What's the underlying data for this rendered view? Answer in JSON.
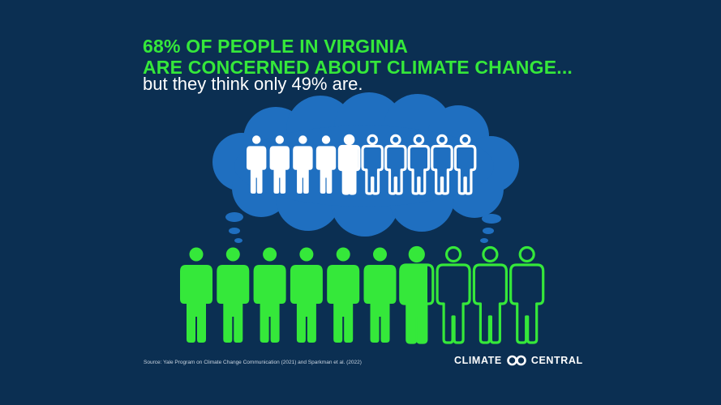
{
  "headline": {
    "line1": "68% OF PEOPLE IN VIRGINIA",
    "line2": "ARE CONCERNED ABOUT CLIMATE CHANGE...",
    "subline": "but they think only 49% are."
  },
  "stats": {
    "actual_percent": 68,
    "perceived_percent": 49,
    "icons_per_row": 10
  },
  "source": "Source: Yale Program on Climate Change Communication (2021) and Sparkman et al. (2022)",
  "logo": {
    "left_text": "CLIMATE",
    "right_text": "CENTRAL"
  },
  "colors": {
    "background": "#0b2f52",
    "accent_green": "#35e83a",
    "cloud_blue": "#1f6fc0",
    "white": "#ffffff"
  }
}
